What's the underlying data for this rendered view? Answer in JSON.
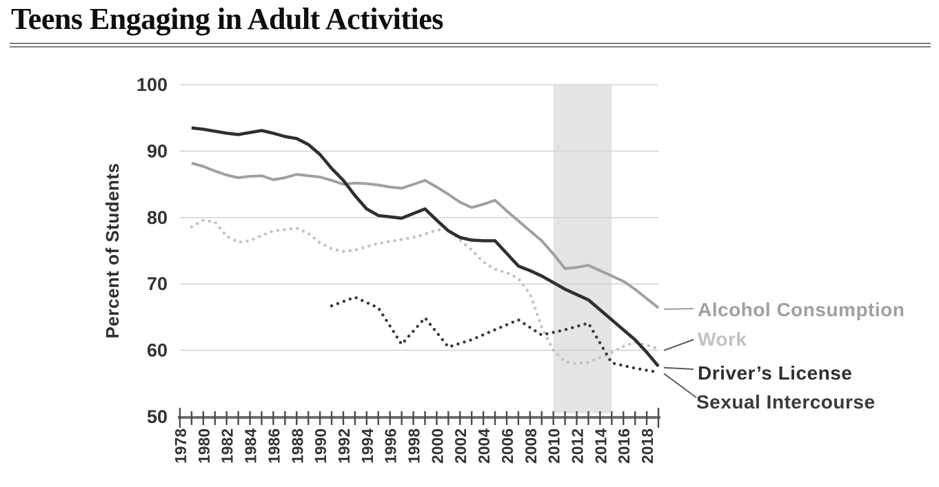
{
  "page": {
    "title": "Teens Engaging in Adult Activities"
  },
  "chart_data": {
    "type": "line",
    "title": "Teens Engaging in Adult Activities",
    "xlabel": "",
    "ylabel": "Percent of Students",
    "xlim": [
      1978,
      2019
    ],
    "ylim": [
      50,
      100
    ],
    "y_ticks": [
      50,
      60,
      70,
      80,
      90,
      100
    ],
    "x_tick_years": [
      1978,
      1980,
      1982,
      1984,
      1986,
      1988,
      1990,
      1992,
      1994,
      1996,
      1998,
      2000,
      2002,
      2004,
      2006,
      2008,
      2010,
      2012,
      2014,
      2016,
      2018
    ],
    "grid": "horizontal",
    "legend_position": "right",
    "shaded_region": {
      "from": 2010,
      "to": 2015,
      "color": "#e4e4e4"
    },
    "colors": {
      "background": "#ffffff",
      "grid": "#d4d4d4",
      "axis": "#6e6e6e",
      "ticks": "#4a4a4a",
      "text": "#333333"
    },
    "series": [
      {
        "name": "Alcohol Consumption",
        "style": "solid",
        "color": "#a0a0a0",
        "leader_color": "#9e9e9e",
        "stroke_width": 4,
        "points": [
          [
            1979,
            88.2
          ],
          [
            1980,
            87.7
          ],
          [
            1981,
            87.0
          ],
          [
            1982,
            86.4
          ],
          [
            1983,
            86.0
          ],
          [
            1984,
            86.2
          ],
          [
            1985,
            86.3
          ],
          [
            1986,
            85.7
          ],
          [
            1987,
            86.0
          ],
          [
            1988,
            86.5
          ],
          [
            1989,
            86.3
          ],
          [
            1990,
            86.1
          ],
          [
            1991,
            85.6
          ],
          [
            1992,
            85.0
          ],
          [
            1993,
            85.2
          ],
          [
            1994,
            85.1
          ],
          [
            1995,
            84.9
          ],
          [
            1996,
            84.6
          ],
          [
            1997,
            84.4
          ],
          [
            1998,
            85.0
          ],
          [
            1999,
            85.6
          ],
          [
            2000,
            84.6
          ],
          [
            2001,
            83.5
          ],
          [
            2002,
            82.3
          ],
          [
            2003,
            81.5
          ],
          [
            2004,
            82.0
          ],
          [
            2005,
            82.6
          ],
          [
            2006,
            81.0
          ],
          [
            2007,
            79.5
          ],
          [
            2008,
            78.0
          ],
          [
            2009,
            76.5
          ],
          [
            2010,
            74.5
          ],
          [
            2011,
            72.3
          ],
          [
            2012,
            72.5
          ],
          [
            2013,
            72.8
          ],
          [
            2014,
            72.0
          ],
          [
            2015,
            71.2
          ],
          [
            2016,
            70.4
          ],
          [
            2017,
            69.2
          ],
          [
            2018,
            67.8
          ],
          [
            2019,
            66.4
          ]
        ]
      },
      {
        "name": "Work",
        "style": "dotted",
        "color": "#c2c2c2",
        "leader_color": "#5a5a5a",
        "stroke_width": 4.4,
        "points": [
          [
            1979,
            78.6
          ],
          [
            1980,
            79.6
          ],
          [
            1981,
            79.3
          ],
          [
            1982,
            77.2
          ],
          [
            1983,
            76.3
          ],
          [
            1984,
            76.5
          ],
          [
            1985,
            77.3
          ],
          [
            1986,
            78.0
          ],
          [
            1987,
            78.2
          ],
          [
            1988,
            78.4
          ],
          [
            1989,
            77.6
          ],
          [
            1990,
            76.2
          ],
          [
            1991,
            75.3
          ],
          [
            1992,
            74.9
          ],
          [
            1993,
            75.1
          ],
          [
            1994,
            75.6
          ],
          [
            1995,
            76.1
          ],
          [
            1996,
            76.4
          ],
          [
            1997,
            76.7
          ],
          [
            1998,
            77.0
          ],
          [
            1999,
            77.5
          ],
          [
            2000,
            78.1
          ],
          [
            2001,
            78.3
          ],
          [
            2002,
            76.6
          ],
          [
            2003,
            75.1
          ],
          [
            2004,
            73.3
          ],
          [
            2005,
            72.2
          ],
          [
            2006,
            71.7
          ],
          [
            2007,
            70.8
          ],
          [
            2008,
            68.5
          ],
          [
            2009,
            63.5
          ],
          [
            2010,
            60.0
          ],
          [
            2011,
            58.3
          ],
          [
            2012,
            58.0
          ],
          [
            2013,
            58.2
          ],
          [
            2014,
            58.9
          ],
          [
            2015,
            59.7
          ],
          [
            2016,
            60.6
          ],
          [
            2017,
            61.2
          ],
          [
            2018,
            60.8
          ],
          [
            2019,
            60.2
          ]
        ]
      },
      {
        "name": "Driver’s License",
        "style": "solid",
        "color": "#2f2f2f",
        "leader_color": "#5a5a5a",
        "stroke_width": 4.6,
        "points": [
          [
            1979,
            93.5
          ],
          [
            1980,
            93.3
          ],
          [
            1981,
            93.0
          ],
          [
            1982,
            92.7
          ],
          [
            1983,
            92.5
          ],
          [
            1984,
            92.8
          ],
          [
            1985,
            93.1
          ],
          [
            1986,
            92.7
          ],
          [
            1987,
            92.2
          ],
          [
            1988,
            91.9
          ],
          [
            1989,
            91.0
          ],
          [
            1990,
            89.5
          ],
          [
            1991,
            87.4
          ],
          [
            1992,
            85.6
          ],
          [
            1993,
            83.3
          ],
          [
            1994,
            81.3
          ],
          [
            1995,
            80.3
          ],
          [
            1996,
            80.1
          ],
          [
            1997,
            79.9
          ],
          [
            1998,
            80.6
          ],
          [
            1999,
            81.3
          ],
          [
            2000,
            79.6
          ],
          [
            2001,
            78.0
          ],
          [
            2002,
            77.0
          ],
          [
            2003,
            76.6
          ],
          [
            2004,
            76.5
          ],
          [
            2005,
            76.5
          ],
          [
            2006,
            74.6
          ],
          [
            2007,
            72.7
          ],
          [
            2008,
            72.0
          ],
          [
            2009,
            71.2
          ],
          [
            2010,
            70.2
          ],
          [
            2011,
            69.2
          ],
          [
            2012,
            68.4
          ],
          [
            2013,
            67.6
          ],
          [
            2014,
            66.1
          ],
          [
            2015,
            64.6
          ],
          [
            2016,
            63.1
          ],
          [
            2017,
            61.6
          ],
          [
            2018,
            59.7
          ],
          [
            2019,
            57.6
          ]
        ]
      },
      {
        "name": "Sexual Intercourse",
        "style": "dotted",
        "color": "#3a3a3a",
        "leader_color": "#5a5a5a",
        "stroke_width": 4.4,
        "points": [
          [
            1991,
            66.7
          ],
          [
            1993,
            68.0
          ],
          [
            1995,
            66.4
          ],
          [
            1997,
            60.9
          ],
          [
            1999,
            64.9
          ],
          [
            2001,
            60.5
          ],
          [
            2003,
            61.6
          ],
          [
            2005,
            63.1
          ],
          [
            2007,
            64.6
          ],
          [
            2009,
            62.3
          ],
          [
            2011,
            63.1
          ],
          [
            2013,
            64.1
          ],
          [
            2015,
            58.1
          ],
          [
            2017,
            57.3
          ],
          [
            2019,
            56.7
          ]
        ]
      }
    ]
  }
}
